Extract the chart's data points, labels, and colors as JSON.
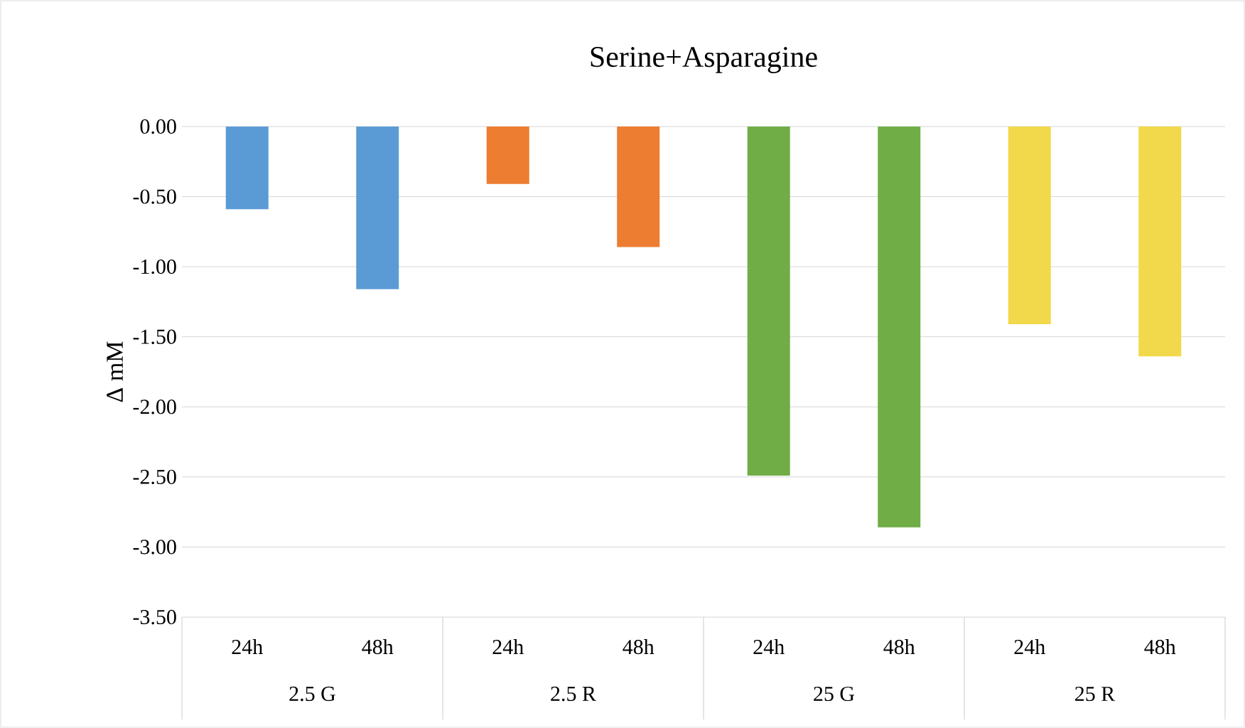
{
  "chart_data": {
    "type": "bar",
    "title": "Serine+Asparagine",
    "ylabel": "Δ mM",
    "categories": [
      "24h",
      "48h",
      "24h",
      "48h",
      "24h",
      "48h",
      "24h",
      "48h"
    ],
    "values": [
      -0.59,
      -1.16,
      -0.41,
      -0.86,
      -2.49,
      -2.86,
      -1.41,
      -1.64
    ],
    "colors": [
      "#5b9bd5",
      "#5b9bd5",
      "#ed7d31",
      "#ed7d31",
      "#70ad47",
      "#70ad47",
      "#f2d84b",
      "#f2d84b"
    ],
    "annotations": [
      "2.5 G",
      "2.5 R",
      "25 G",
      "25 R"
    ],
    "ylim": [
      -3.5,
      0
    ],
    "yticks": [
      {
        "value": 0,
        "label": "0.00"
      },
      {
        "value": -0.5,
        "label": "-0.50"
      },
      {
        "value": -1,
        "label": "-1.00"
      },
      {
        "value": -1.5,
        "label": "-1.50"
      },
      {
        "value": -2,
        "label": "-2.00"
      },
      {
        "value": -2.5,
        "label": "-2.50"
      },
      {
        "value": -3,
        "label": "-3.00"
      },
      {
        "value": -3.5,
        "label": "-3.50"
      }
    ],
    "grid": "y"
  }
}
